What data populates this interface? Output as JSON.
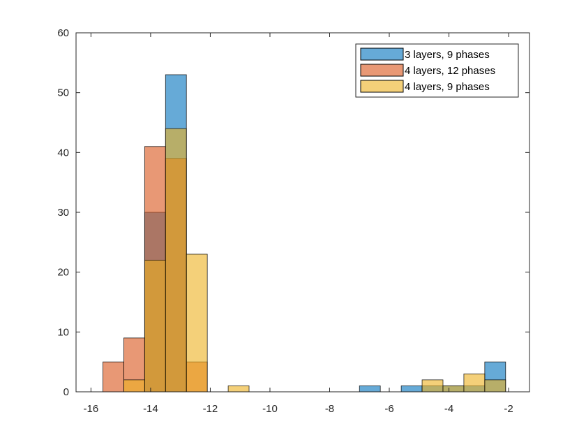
{
  "chart_data": {
    "type": "histogram",
    "title": "",
    "xlabel": "",
    "ylabel": "",
    "xlim": [
      -16.5,
      -1.3
    ],
    "ylim": [
      0,
      60
    ],
    "xticks": [
      -16,
      -14,
      -12,
      -10,
      -8,
      -6,
      -4,
      -2
    ],
    "yticks": [
      0,
      10,
      20,
      30,
      40,
      50,
      60
    ],
    "grid": false,
    "legend_position": "top-right",
    "overlap_colors": [
      "#B0A56A",
      "#A77868",
      "#E29B3C",
      "#D59C3E"
    ],
    "series": [
      {
        "name": "3 layers, 9 phases",
        "color": "#0072BD",
        "bins": [
          {
            "x0": -14.2,
            "x1": -13.5,
            "count": 30
          },
          {
            "x0": -13.5,
            "x1": -12.8,
            "count": 53
          },
          {
            "x0": -7.0,
            "x1": -6.3,
            "count": 1
          },
          {
            "x0": -5.6,
            "x1": -4.9,
            "count": 1
          },
          {
            "x0": -4.9,
            "x1": -4.2,
            "count": 1
          },
          {
            "x0": -4.2,
            "x1": -3.5,
            "count": 1
          },
          {
            "x0": -3.5,
            "x1": -2.8,
            "count": 1
          },
          {
            "x0": -2.8,
            "x1": -2.1,
            "count": 5
          }
        ]
      },
      {
        "name": "4 layers, 12 phases",
        "color": "#D95319",
        "bins": [
          {
            "x0": -15.6,
            "x1": -14.9,
            "count": 5
          },
          {
            "x0": -14.9,
            "x1": -14.2,
            "count": 9
          },
          {
            "x0": -14.2,
            "x1": -13.5,
            "count": 41
          },
          {
            "x0": -13.5,
            "x1": -12.8,
            "count": 39
          },
          {
            "x0": -12.8,
            "x1": -12.1,
            "count": 5
          }
        ]
      },
      {
        "name": "4 layers, 9 phases",
        "color": "#EDB120",
        "bins": [
          {
            "x0": -14.9,
            "x1": -14.2,
            "count": 2
          },
          {
            "x0": -14.2,
            "x1": -13.5,
            "count": 22
          },
          {
            "x0": -13.5,
            "x1": -12.8,
            "count": 44
          },
          {
            "x0": -12.8,
            "x1": -12.1,
            "count": 23
          },
          {
            "x0": -11.4,
            "x1": -10.7,
            "count": 1
          },
          {
            "x0": -4.9,
            "x1": -4.2,
            "count": 2
          },
          {
            "x0": -4.2,
            "x1": -3.5,
            "count": 1
          },
          {
            "x0": -3.5,
            "x1": -2.8,
            "count": 3
          },
          {
            "x0": -2.8,
            "x1": -2.1,
            "count": 2
          }
        ]
      }
    ]
  }
}
